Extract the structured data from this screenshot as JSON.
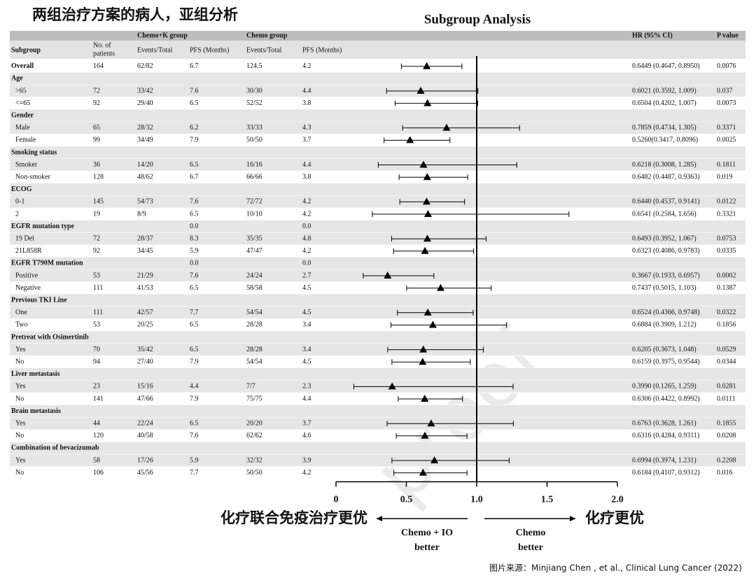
{
  "heading": "两组治疗方案的病人，亚组分析",
  "source": "图片来源：Minjiang Chen , et al., Clinical Lung Cancer (2022)",
  "watermark": "proof",
  "chart_data": {
    "type": "forest",
    "title": "Subgroup Analysis",
    "header": {
      "group1": "Chemo+K group",
      "group2": "Chemo group",
      "hr": "HR (95% CI)",
      "p": "P value",
      "subgroup": "Subgroup",
      "n1": "No. of",
      "n2": "patients",
      "ev1": "Events/Total",
      "pfs1": "PFS (Months)",
      "ev2": "Events/Total",
      "pfs2": "PFS (Months)"
    },
    "rows": [
      {
        "label": "Overall",
        "n": "164",
        "ck_events": "62/82",
        "ck_pfs": "6.7",
        "c_events": "124.5",
        "c_pfs": "4.2",
        "hr": 0.6449,
        "lo": 0.4647,
        "hi": 0.895,
        "ci": "0.6449 (0.4647, 0.8950)",
        "p": "0.0076"
      },
      {
        "label": "Age"
      },
      {
        "label": ">65",
        "n": "72",
        "ck_events": "33/42",
        "ck_pfs": "7.6",
        "c_events": "30/30",
        "c_pfs": "4.4",
        "hr": 0.6021,
        "lo": 0.3592,
        "hi": 1.009,
        "ci": "0.6021 (0.3592, 1.009)",
        "p": "0.037"
      },
      {
        "label": "<=65",
        "n": "92",
        "ck_events": "29/40",
        "ck_pfs": "6.5",
        "c_events": "52/52",
        "c_pfs": "3.8",
        "hr": 0.6504,
        "lo": 0.4202,
        "hi": 1.007,
        "ci": "0.6504 (0.4202, 1.007)",
        "p": "0.0073"
      },
      {
        "label": "Gender"
      },
      {
        "label": "Male",
        "n": "65",
        "ck_events": "28/32",
        "ck_pfs": "6.2",
        "c_events": "33/33",
        "c_pfs": "4.3",
        "hr": 0.7859,
        "lo": 0.4734,
        "hi": 1.305,
        "ci": "0.7859 (0.4734, 1.305)",
        "p": "0.3371"
      },
      {
        "label": "Female",
        "n": "99",
        "ck_events": "34/49",
        "ck_pfs": "7.9",
        "c_events": "50/50",
        "c_pfs": "3.7",
        "hr": 0.526,
        "lo": 0.3417,
        "hi": 0.8096,
        "ci": "0.5260(0.3417, 0.8096)",
        "p": "0.0025"
      },
      {
        "label": "Smoking status"
      },
      {
        "label": "Smoker",
        "n": "36",
        "ck_events": "14/20",
        "ck_pfs": "6.5",
        "c_events": "16/16",
        "c_pfs": "4.4",
        "hr": 0.6218,
        "lo": 0.3008,
        "hi": 1.285,
        "ci": "0.6218 (0.3008, 1.285)",
        "p": "0.1811"
      },
      {
        "label": "Non-smoker",
        "n": "128",
        "ck_events": "48/62",
        "ck_pfs": "6.7",
        "c_events": "66/66",
        "c_pfs": "3.8",
        "hr": 0.6482,
        "lo": 0.4487,
        "hi": 0.9363,
        "ci": "0.6482 (0.4487, 0.9363)",
        "p": "0.019"
      },
      {
        "label": "ECOG"
      },
      {
        "label": "0-1",
        "n": "145",
        "ck_events": "54/73",
        "ck_pfs": "7.6",
        "c_events": "72/72",
        "c_pfs": "4.2",
        "hr": 0.644,
        "lo": 0.4537,
        "hi": 0.9141,
        "ci": "0.6440 (0.4537, 0.9141)",
        "p": "0.0122"
      },
      {
        "label": "2",
        "n": "19",
        "ck_events": "8/9",
        "ck_pfs": "6.5",
        "c_events": "10/10",
        "c_pfs": "4.2",
        "hr": 0.6541,
        "lo": 0.2584,
        "hi": 1.656,
        "ci": "0.6541 (0.2584, 1.656)",
        "p": "0.3321"
      },
      {
        "label": "EGFR mutation type",
        "ck_pfs": "0.0",
        "c_pfs": "0.0"
      },
      {
        "label": "19 Del",
        "n": "72",
        "ck_events": "28/37",
        "ck_pfs": "8.3",
        "c_events": "35/35",
        "c_pfs": "4.8",
        "hr": 0.6493,
        "lo": 0.3952,
        "hi": 1.067,
        "ci": "0.6493 (0.3952, 1.067)",
        "p": "0.0753"
      },
      {
        "label": "21L858R",
        "n": "92",
        "ck_events": "34/45",
        "ck_pfs": "5.9",
        "c_events": "47/47",
        "c_pfs": "4.2",
        "hr": 0.6323,
        "lo": 0.4086,
        "hi": 0.9783,
        "ci": "0.6323 (0.4086, 0.9783)",
        "p": "0.0335"
      },
      {
        "label": "EGFR T790M mutation",
        "ck_pfs": "0.0",
        "c_pfs": "0.0"
      },
      {
        "label": "Positive",
        "n": "53",
        "ck_events": "21/29",
        "ck_pfs": "7.6",
        "c_events": "24/24",
        "c_pfs": "2.7",
        "hr": 0.3667,
        "lo": 0.1933,
        "hi": 0.6957,
        "ci": "0.3667 (0.1933, 0.6957)",
        "p": "0.0002"
      },
      {
        "label": "Negative",
        "n": "111",
        "ck_events": "41/53",
        "ck_pfs": "6.5",
        "c_events": "58/58",
        "c_pfs": "4.5",
        "hr": 0.7437,
        "lo": 0.5015,
        "hi": 1.103,
        "ci": "0.7437 (0.5015, 1.103)",
        "p": "0.1387"
      },
      {
        "label": "Previous TKI Line"
      },
      {
        "label": "One",
        "n": "111",
        "ck_events": "42/57",
        "ck_pfs": "7.7",
        "c_events": "54/54",
        "c_pfs": "4.5",
        "hr": 0.6524,
        "lo": 0.4366,
        "hi": 0.9748,
        "ci": "0.6524 (0.4366, 0.9748)",
        "p": "0.0322"
      },
      {
        "label": "Two",
        "n": "53",
        "ck_events": "20/25",
        "ck_pfs": "6.5",
        "c_events": "28/28",
        "c_pfs": "3.4",
        "hr": 0.6884,
        "lo": 0.3909,
        "hi": 1.212,
        "ci": "0.6884 (0.3909, 1.212)",
        "p": "0.1856"
      },
      {
        "label": "Pretreat with Osimertinib"
      },
      {
        "label": "Yes",
        "n": "70",
        "ck_events": "35/42",
        "ck_pfs": "6.5",
        "c_events": "28/28",
        "c_pfs": "3.4",
        "hr": 0.6205,
        "lo": 0.3673,
        "hi": 1.048,
        "ci": "0.6205 (0.3673, 1.048)",
        "p": "0.0529"
      },
      {
        "label": "No",
        "n": "94",
        "ck_events": "27/40",
        "ck_pfs": "7.9",
        "c_events": "54/54",
        "c_pfs": "4.5",
        "hr": 0.6159,
        "lo": 0.3975,
        "hi": 0.9544,
        "ci": "0.6159 (0.3975, 0.9544)",
        "p": "0.0344"
      },
      {
        "label": "Liver metastasis"
      },
      {
        "label": "Yes",
        "n": "23",
        "ck_events": "15/16",
        "ck_pfs": "4.4",
        "c_events": "7/7",
        "c_pfs": "2.3",
        "hr": 0.399,
        "lo": 0.1265,
        "hi": 1.259,
        "ci": "0.3990 (0.1265, 1.259)",
        "p": "0.0281"
      },
      {
        "label": "No",
        "n": "141",
        "ck_events": "47/66",
        "ck_pfs": "7.9",
        "c_events": "75/75",
        "c_pfs": "4.4",
        "hr": 0.6306,
        "lo": 0.4422,
        "hi": 0.8992,
        "ci": "0.6306 (0.4422, 0.8992)",
        "p": "0.0111"
      },
      {
        "label": "Brain metastasis"
      },
      {
        "label": "Yes",
        "n": "44",
        "ck_events": "22/24",
        "ck_pfs": "6.5",
        "c_events": "20/20",
        "c_pfs": "3.7",
        "hr": 0.6763,
        "lo": 0.3628,
        "hi": 1.261,
        "ci": "0.6763 (0.3628, 1.261)",
        "p": "0.1855"
      },
      {
        "label": "No",
        "n": "120",
        "ck_events": "40/58",
        "ck_pfs": "7.6",
        "c_events": "62/62",
        "c_pfs": "4.6",
        "hr": 0.6316,
        "lo": 0.4284,
        "hi": 0.9311,
        "ci": "0.6316 (0.4284, 0.9311)",
        "p": "0.0208"
      },
      {
        "label": "Combination of bevacizumab"
      },
      {
        "label": "Yes",
        "n": "58",
        "ck_events": "17/26",
        "ck_pfs": "5.9",
        "c_events": "32/32",
        "c_pfs": "3.9",
        "hr": 0.6994,
        "lo": 0.3974,
        "hi": 1.231,
        "ci": "0.6994 (0.3974, 1.231)",
        "p": "0.2208"
      },
      {
        "label": "No",
        "n": "106",
        "ck_events": "45/56",
        "ck_pfs": "7.7",
        "c_events": "50/50",
        "c_pfs": "4.2",
        "hr": 0.6184,
        "lo": 0.4107,
        "hi": 0.9312,
        "ci": "0.6184 (0.4107, 0.9312)",
        "p": "0.016"
      }
    ],
    "xlim": [
      0,
      2
    ],
    "xticks": [
      0,
      0.5,
      {
        "value": 1,
        "label": "1.0"
      },
      1.5,
      {
        "value": 2,
        "label": "2.0"
      }
    ],
    "left_label": "化疗联合免疫治疗更优",
    "right_label": "化疗更优",
    "left_note": [
      "Chemo + IO",
      "better"
    ],
    "right_note": [
      "Chemo",
      "better"
    ]
  }
}
